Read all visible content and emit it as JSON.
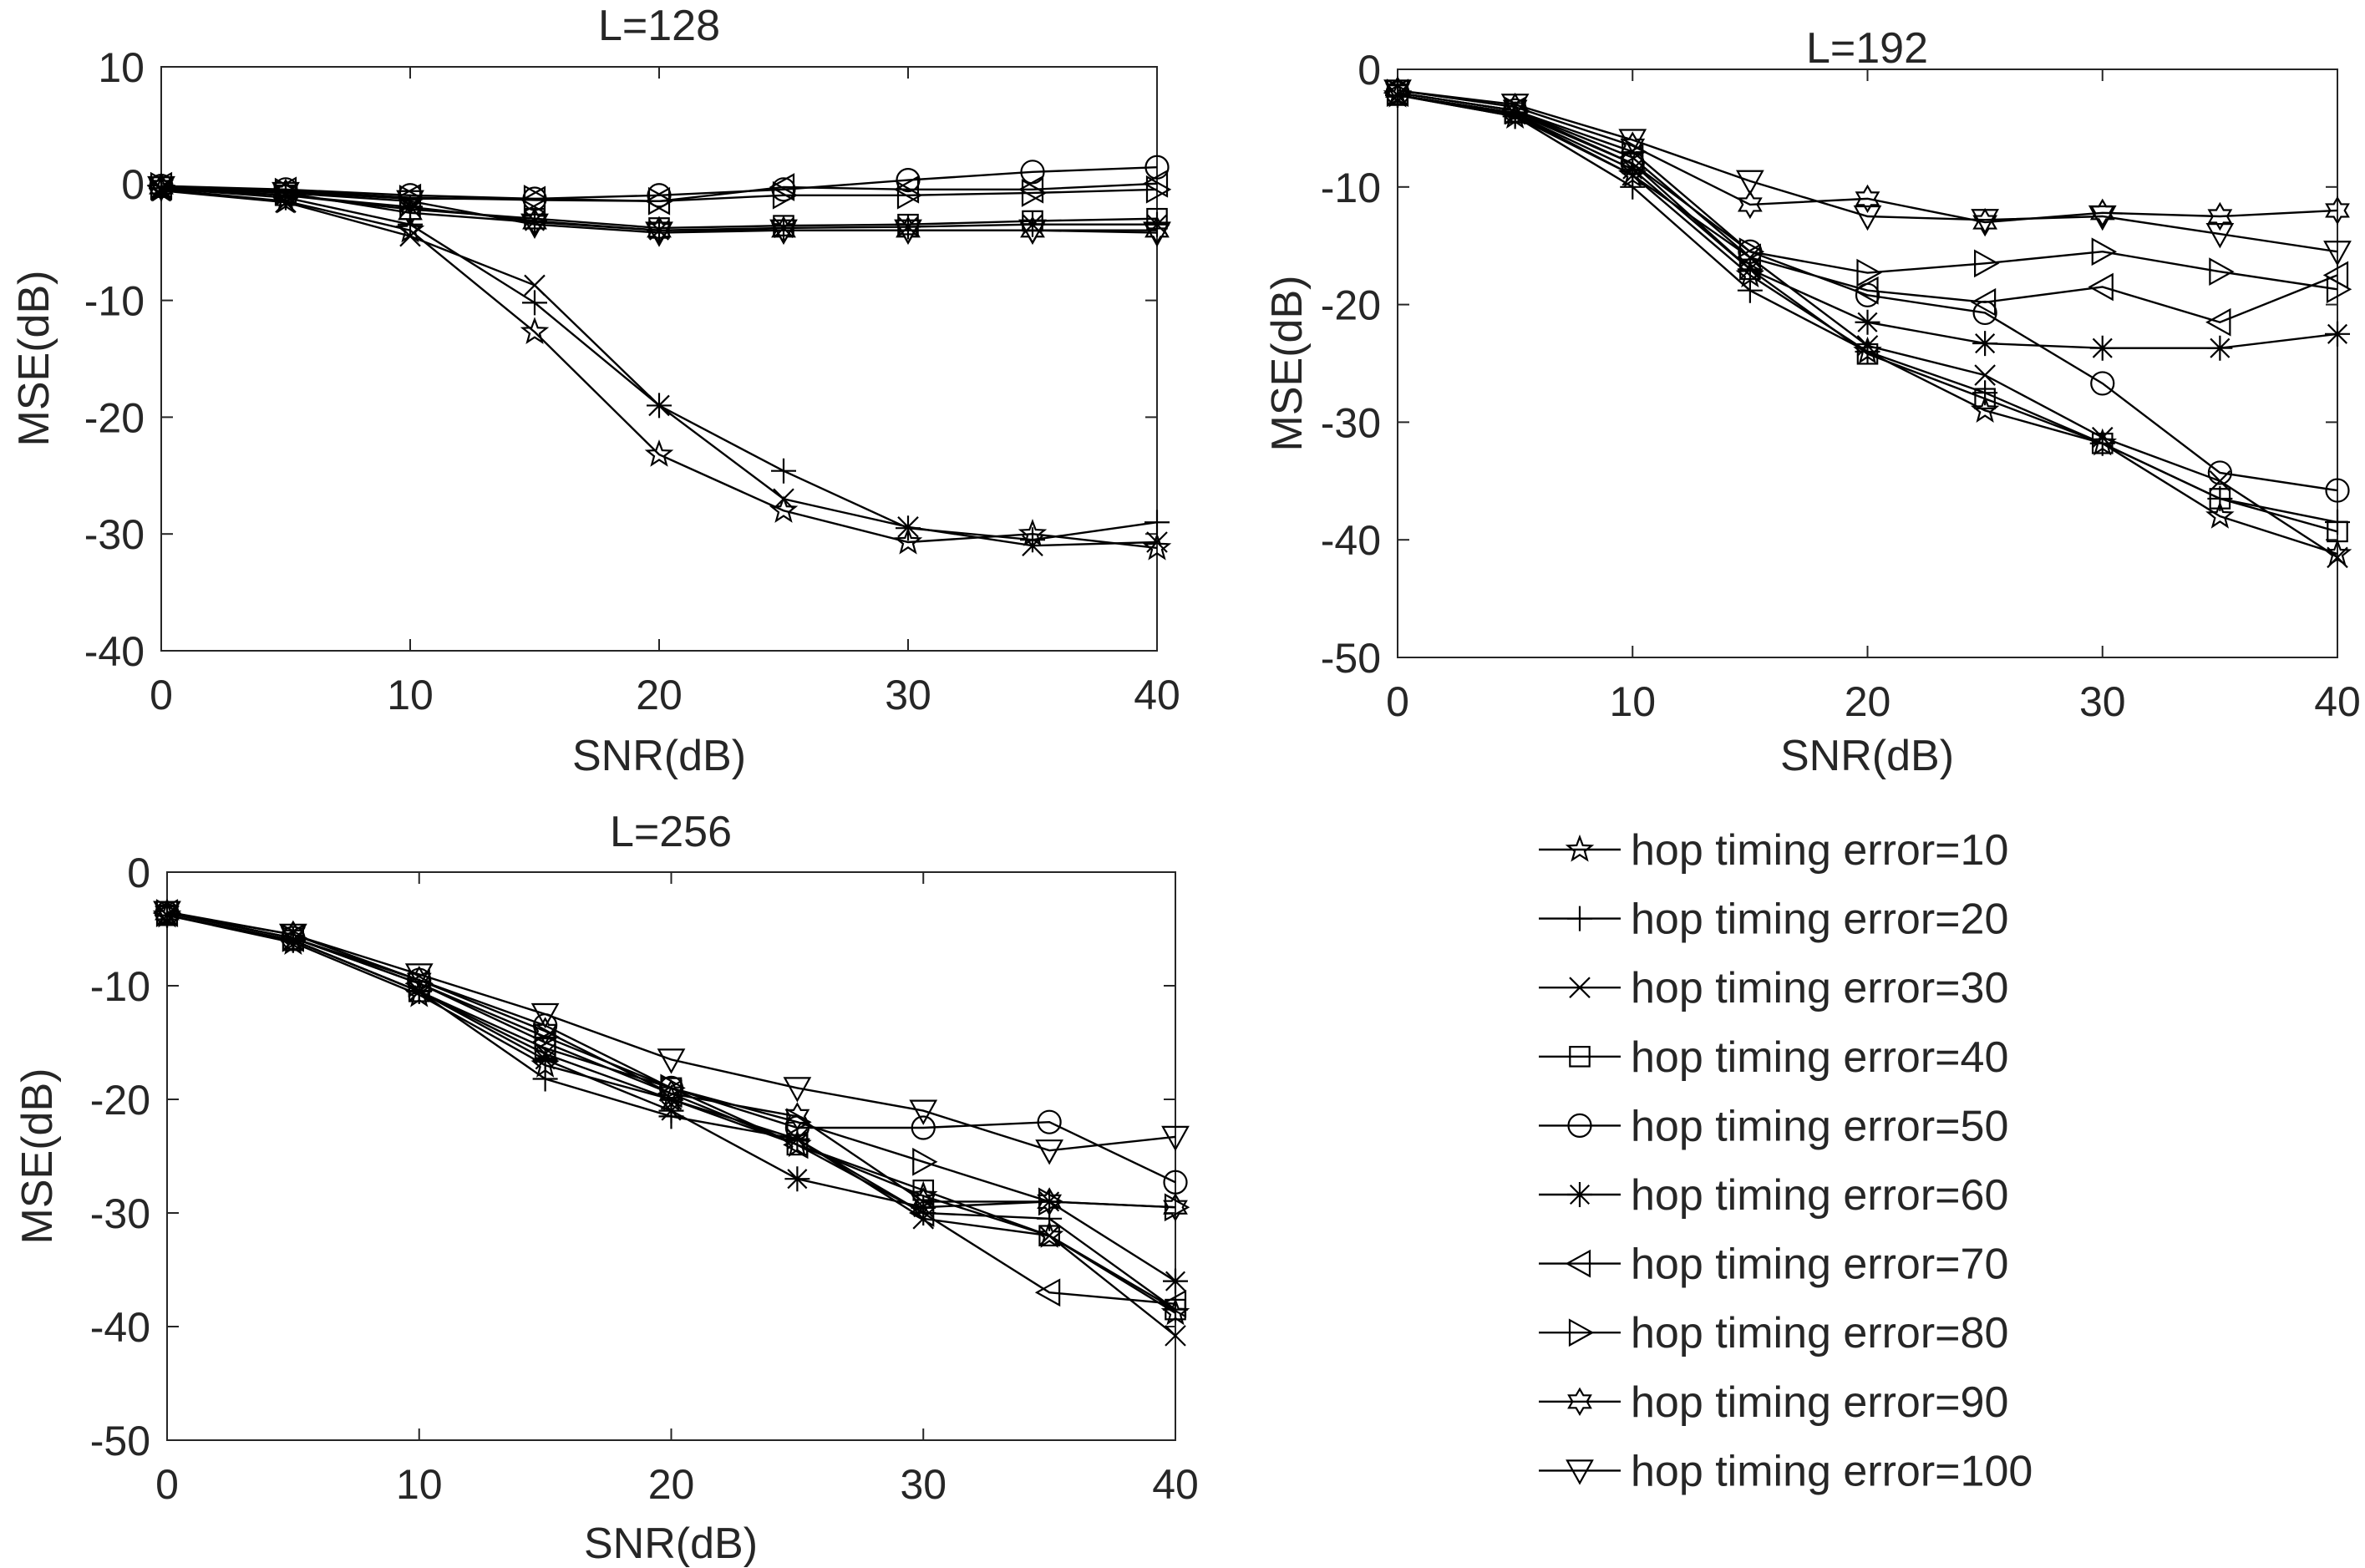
{
  "legend": {
    "entries": [
      {
        "label": "hop timing error=10",
        "marker": "star"
      },
      {
        "label": "hop timing error=20",
        "marker": "plus"
      },
      {
        "label": "hop timing error=30",
        "marker": "x"
      },
      {
        "label": "hop timing error=40",
        "marker": "square"
      },
      {
        "label": "hop timing error=50",
        "marker": "circle"
      },
      {
        "label": "hop timing error=60",
        "marker": "asterisk"
      },
      {
        "label": "hop timing error=70",
        "marker": "triangle-left"
      },
      {
        "label": "hop timing error=80",
        "marker": "triangle-right"
      },
      {
        "label": "hop timing error=90",
        "marker": "hexagram"
      },
      {
        "label": "hop timing error=100",
        "marker": "triangle-down"
      }
    ]
  },
  "chart_data": [
    {
      "type": "line",
      "title": "L=128",
      "xlabel": "SNR(dB)",
      "ylabel": "MSE(dB)",
      "xlim": [
        0,
        40
      ],
      "ylim": [
        -40,
        10
      ],
      "xticks": [
        "0",
        "10",
        "20",
        "30",
        "40"
      ],
      "yticks": [
        "10",
        "0",
        "-10",
        "-20",
        "-30",
        "-40"
      ],
      "x": [
        0,
        5,
        10,
        15,
        20,
        25,
        30,
        35,
        40
      ],
      "series": [
        {
          "name": "hop timing error=10",
          "marker": "star",
          "values": [
            -0.5,
            -1.5,
            -4.0,
            -12.7,
            -23.2,
            -28.0,
            -30.7,
            -30.0,
            -31.2
          ]
        },
        {
          "name": "hop timing error=20",
          "marker": "plus",
          "values": [
            -0.4,
            -1.2,
            -3.5,
            -10.2,
            -19.0,
            -24.6,
            -29.5,
            -30.5,
            -29.0
          ]
        },
        {
          "name": "hop timing error=30",
          "marker": "x",
          "values": [
            -0.6,
            -1.6,
            -4.5,
            -8.7,
            -19.0,
            -27.0,
            -29.4,
            -31.0,
            -30.7
          ]
        },
        {
          "name": "hop timing error=40",
          "marker": "square",
          "values": [
            -0.3,
            -1.0,
            -2.2,
            -3.0,
            -3.8,
            -3.6,
            -3.5,
            -3.2,
            -3.0
          ]
        },
        {
          "name": "hop timing error=50",
          "marker": "circle",
          "values": [
            -0.2,
            -0.5,
            -1.0,
            -1.3,
            -1.0,
            -0.5,
            0.3,
            1.0,
            1.4
          ]
        },
        {
          "name": "hop timing error=60",
          "marker": "asterisk",
          "values": [
            -0.4,
            -1.0,
            -2.0,
            -3.2,
            -4.0,
            -3.8,
            -3.7,
            -3.5,
            -3.5
          ]
        },
        {
          "name": "hop timing error=70",
          "marker": "triangle-left",
          "values": [
            -0.2,
            -0.6,
            -1.2,
            -1.4,
            -1.5,
            -0.3,
            -0.5,
            -0.5,
            0.0
          ]
        },
        {
          "name": "hop timing error=80",
          "marker": "triangle-right",
          "values": [
            -0.2,
            -0.7,
            -1.3,
            -1.3,
            -1.5,
            -1.0,
            -1.0,
            -0.8,
            -0.5
          ]
        },
        {
          "name": "hop timing error=90",
          "marker": "hexagram",
          "values": [
            -0.3,
            -0.8,
            -2.5,
            -3.3,
            -4.0,
            -4.0,
            -4.0,
            -4.0,
            -4.0
          ]
        },
        {
          "name": "hop timing error=100",
          "marker": "triangle-down",
          "values": [
            -0.3,
            -0.8,
            -1.5,
            -3.5,
            -4.2,
            -4.0,
            -4.0,
            -4.0,
            -4.2
          ]
        }
      ]
    },
    {
      "type": "line",
      "title": "L=192",
      "xlabel": "SNR(dB)",
      "ylabel": "MSE(dB)",
      "xlim": [
        0,
        40
      ],
      "ylim": [
        -50,
        0
      ],
      "xticks": [
        "0",
        "10",
        "20",
        "30",
        "40"
      ],
      "yticks": [
        "0",
        "-10",
        "-20",
        "-30",
        "-40",
        "-50"
      ],
      "x": [
        0,
        5,
        10,
        15,
        20,
        25,
        30,
        35,
        40
      ],
      "series": [
        {
          "name": "hop timing error=10",
          "marker": "star",
          "values": [
            -2.2,
            -4.0,
            -9.0,
            -17.5,
            -24.0,
            -29.0,
            -31.8,
            -38.0,
            -41.2
          ]
        },
        {
          "name": "hop timing error=20",
          "marker": "plus",
          "values": [
            -2.2,
            -4.0,
            -10.0,
            -18.8,
            -24.0,
            -27.5,
            -31.8,
            -36.5,
            -38.5
          ]
        },
        {
          "name": "hop timing error=30",
          "marker": "x",
          "values": [
            -2.2,
            -3.8,
            -9.0,
            -16.0,
            -23.5,
            -26.0,
            -31.3,
            -35.0,
            -41.5
          ]
        },
        {
          "name": "hop timing error=40",
          "marker": "square",
          "values": [
            -2.2,
            -3.7,
            -8.0,
            -17.0,
            -24.2,
            -28.0,
            -31.8,
            -36.5,
            -39.3
          ]
        },
        {
          "name": "hop timing error=50",
          "marker": "circle",
          "values": [
            -2.0,
            -3.5,
            -8.0,
            -15.5,
            -19.2,
            -20.7,
            -26.7,
            -34.3,
            -35.8
          ]
        },
        {
          "name": "hop timing error=60",
          "marker": "asterisk",
          "values": [
            -2.2,
            -3.8,
            -8.5,
            -17.0,
            -21.5,
            -23.3,
            -23.7,
            -23.7,
            -22.5
          ]
        },
        {
          "name": "hop timing error=70",
          "marker": "triangle-left",
          "values": [
            -2.0,
            -3.5,
            -7.5,
            -16.0,
            -18.8,
            -19.8,
            -18.5,
            -21.5,
            -17.5
          ]
        },
        {
          "name": "hop timing error=80",
          "marker": "triangle-right",
          "values": [
            -2.0,
            -3.5,
            -7.0,
            -15.5,
            -17.3,
            -16.5,
            -15.5,
            -17.2,
            -18.7
          ]
        },
        {
          "name": "hop timing error=90",
          "marker": "hexagram",
          "values": [
            -1.8,
            -3.2,
            -6.5,
            -11.5,
            -11.0,
            -13.0,
            -12.2,
            -12.5,
            -12.0
          ]
        },
        {
          "name": "hop timing error=100",
          "marker": "triangle-down",
          "values": [
            -1.8,
            -3.0,
            -6.0,
            -9.5,
            -12.5,
            -12.8,
            -12.5,
            -14.0,
            -15.5
          ]
        }
      ]
    },
    {
      "type": "line",
      "title": "L=256",
      "xlabel": "SNR(dB)",
      "ylabel": "MSE(dB)",
      "xlim": [
        0,
        40
      ],
      "ylim": [
        -50,
        0
      ],
      "xticks": [
        "0",
        "10",
        "20",
        "30",
        "40"
      ],
      "yticks": [
        "0",
        "-10",
        "-20",
        "-30",
        "-40",
        "-50"
      ],
      "x": [
        0,
        5,
        10,
        15,
        20,
        25,
        30,
        35,
        40
      ],
      "series": [
        {
          "name": "hop timing error=10",
          "marker": "star",
          "values": [
            -3.8,
            -6.2,
            -10.8,
            -17.0,
            -20.0,
            -24.0,
            -28.5,
            -32.0,
            -38.8
          ]
        },
        {
          "name": "hop timing error=20",
          "marker": "plus",
          "values": [
            -3.8,
            -6.0,
            -10.5,
            -18.2,
            -21.5,
            -23.5,
            -30.0,
            -30.5,
            -38.5
          ]
        },
        {
          "name": "hop timing error=30",
          "marker": "x",
          "values": [
            -3.8,
            -6.0,
            -10.5,
            -16.0,
            -20.0,
            -23.5,
            -30.5,
            -32.0,
            -40.8
          ]
        },
        {
          "name": "hop timing error=40",
          "marker": "square",
          "values": [
            -3.8,
            -6.0,
            -10.5,
            -15.5,
            -19.0,
            -24.0,
            -28.0,
            -32.0,
            -38.5
          ]
        },
        {
          "name": "hop timing error=50",
          "marker": "circle",
          "values": [
            -3.6,
            -5.8,
            -9.5,
            -13.5,
            -19.0,
            -22.5,
            -22.5,
            -22.0,
            -27.3
          ]
        },
        {
          "name": "hop timing error=60",
          "marker": "asterisk",
          "values": [
            -3.8,
            -6.0,
            -10.5,
            -16.5,
            -21.0,
            -27.0,
            -29.5,
            -29.0,
            -36.0
          ]
        },
        {
          "name": "hop timing error=70",
          "marker": "triangle-left",
          "values": [
            -3.6,
            -5.8,
            -9.8,
            -15.0,
            -19.5,
            -24.0,
            -30.0,
            -37.0,
            -38.0
          ]
        },
        {
          "name": "hop timing error=80",
          "marker": "triangle-right",
          "values": [
            -3.6,
            -5.8,
            -9.8,
            -14.5,
            -19.0,
            -22.0,
            -25.5,
            -29.0,
            -29.5
          ]
        },
        {
          "name": "hop timing error=90",
          "marker": "hexagram",
          "values": [
            -3.6,
            -5.5,
            -9.5,
            -14.0,
            -19.5,
            -21.5,
            -29.0,
            -29.0,
            -29.5
          ]
        },
        {
          "name": "hop timing error=100",
          "marker": "triangle-down",
          "values": [
            -3.5,
            -5.5,
            -9.0,
            -12.5,
            -16.5,
            -19.0,
            -21.0,
            -24.5,
            -23.3
          ]
        }
      ]
    }
  ]
}
